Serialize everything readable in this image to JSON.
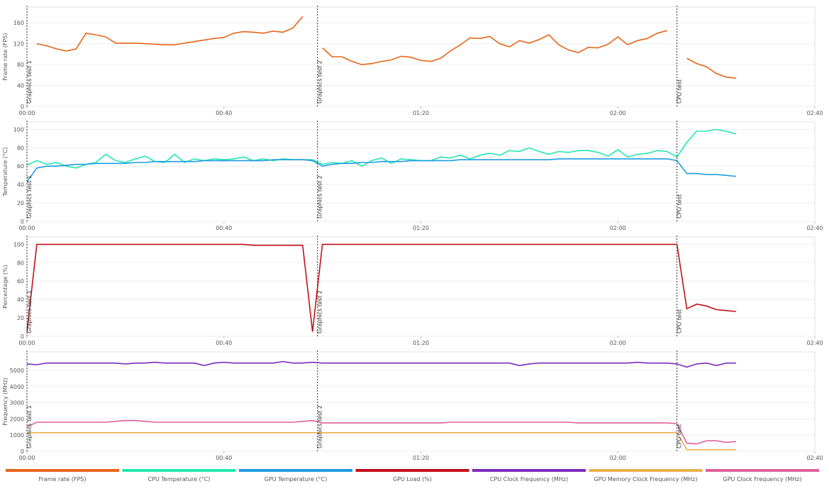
{
  "chart_data": [
    {
      "type": "line",
      "ylabel": "Frame rate (FPS)",
      "xlim": [
        0,
        160
      ],
      "ylim": [
        0,
        190
      ],
      "yticks": [
        0,
        40,
        80,
        120,
        160
      ],
      "xticks": [
        {
          "value": 0,
          "label": "00:00"
        },
        {
          "value": 40,
          "label": "00:40"
        },
        {
          "value": 80,
          "label": "01:20"
        },
        {
          "value": 120,
          "label": "02:00"
        },
        {
          "value": 160,
          "label": "02:40"
        }
      ],
      "grid": true,
      "markers": [
        {
          "x": 0,
          "label": "Graphics test 1"
        },
        {
          "x": 59,
          "label": "Graphics test 2"
        },
        {
          "x": 132,
          "label": "CPU test"
        }
      ],
      "x": [
        0,
        2,
        4,
        6,
        8,
        10,
        12,
        14,
        16,
        18,
        20,
        22,
        24,
        26,
        28,
        30,
        32,
        34,
        36,
        38,
        40,
        42,
        44,
        46,
        48,
        50,
        52,
        54,
        56,
        58,
        60,
        62,
        64,
        66,
        68,
        70,
        72,
        74,
        76,
        78,
        80,
        82,
        84,
        86,
        88,
        90,
        92,
        94,
        96,
        98,
        100,
        102,
        104,
        106,
        108,
        110,
        112,
        114,
        116,
        118,
        120,
        122,
        124,
        126,
        128,
        130,
        132,
        134,
        136,
        138,
        140,
        142,
        144
      ],
      "series": [
        {
          "name": "Frame rate (FPS)",
          "color": "#e8651a",
          "values": [
            null,
            120,
            116,
            110,
            106,
            110,
            140,
            137,
            133,
            121,
            121,
            121,
            120,
            119,
            118,
            118,
            121,
            124,
            127,
            130,
            132,
            140,
            143,
            142,
            140,
            144,
            142,
            150,
            172,
            null,
            112,
            95,
            95,
            86,
            80,
            82,
            86,
            89,
            96,
            94,
            88,
            86,
            92,
            106,
            118,
            131,
            130,
            134,
            120,
            114,
            126,
            121,
            128,
            137,
            118,
            108,
            103,
            113,
            112,
            119,
            133,
            118,
            126,
            130,
            140,
            145,
            null,
            92,
            82,
            76,
            63,
            56,
            54
          ]
        }
      ]
    },
    {
      "type": "line",
      "ylabel": "Temperature (°C)",
      "xlim": [
        0,
        160
      ],
      "ylim": [
        0,
        108
      ],
      "yticks": [
        0,
        20,
        40,
        60,
        80,
        100
      ],
      "xticks": [
        {
          "value": 0,
          "label": "00:00"
        },
        {
          "value": 40,
          "label": "00:40"
        },
        {
          "value": 80,
          "label": "01:20"
        },
        {
          "value": 120,
          "label": "02:00"
        },
        {
          "value": 160,
          "label": "02:40"
        }
      ],
      "grid": true,
      "markers": [
        {
          "x": 0,
          "label": "Graphics test 1"
        },
        {
          "x": 59,
          "label": "Graphics test 2"
        },
        {
          "x": 132,
          "label": "CPU test"
        }
      ],
      "x": [
        0,
        2,
        4,
        6,
        8,
        10,
        12,
        14,
        16,
        18,
        20,
        22,
        24,
        26,
        28,
        30,
        32,
        34,
        36,
        38,
        40,
        42,
        44,
        46,
        48,
        50,
        52,
        54,
        56,
        58,
        60,
        62,
        64,
        66,
        68,
        70,
        72,
        74,
        76,
        78,
        80,
        82,
        84,
        86,
        88,
        90,
        92,
        94,
        96,
        98,
        100,
        102,
        104,
        106,
        108,
        110,
        112,
        114,
        116,
        118,
        120,
        122,
        124,
        126,
        128,
        130,
        132,
        134,
        136,
        138,
        140,
        142,
        144
      ],
      "series": [
        {
          "name": "CPU Temperature (°C)",
          "color": "#22e8b0",
          "values": [
            61,
            66,
            62,
            64,
            60,
            58,
            62,
            64,
            73,
            66,
            64,
            68,
            71,
            65,
            64,
            73,
            64,
            68,
            66,
            68,
            67,
            68,
            70,
            66,
            68,
            66,
            68,
            67,
            67,
            67,
            62,
            64,
            63,
            66,
            60,
            66,
            69,
            63,
            68,
            67,
            66,
            66,
            70,
            69,
            72,
            68,
            72,
            74,
            72,
            77,
            76,
            80,
            76,
            73,
            76,
            75,
            77,
            77,
            75,
            71,
            78,
            70,
            73,
            74,
            77,
            76,
            70,
            86,
            98,
            98,
            100,
            98,
            95
          ]
        },
        {
          "name": "GPU Temperature (°C)",
          "color": "#1e9de0",
          "values": [
            43,
            58,
            60,
            60,
            61,
            62,
            62,
            63,
            63,
            63,
            63,
            64,
            64,
            65,
            65,
            65,
            65,
            65,
            66,
            66,
            66,
            66,
            66,
            66,
            66,
            67,
            67,
            67,
            67,
            66,
            60,
            62,
            63,
            63,
            64,
            64,
            65,
            65,
            65,
            66,
            66,
            66,
            66,
            66,
            67,
            67,
            67,
            67,
            67,
            67,
            67,
            67,
            67,
            67,
            68,
            68,
            68,
            68,
            68,
            68,
            68,
            68,
            68,
            68,
            68,
            68,
            66,
            52,
            52,
            51,
            51,
            50,
            49
          ]
        }
      ]
    },
    {
      "type": "line",
      "ylabel": "Percentage (%)",
      "xlim": [
        0,
        160
      ],
      "ylim": [
        0,
        108
      ],
      "yticks": [
        0,
        20,
        40,
        60,
        80,
        100
      ],
      "xticks": [
        {
          "value": 0,
          "label": "00:00"
        },
        {
          "value": 40,
          "label": "00:40"
        },
        {
          "value": 80,
          "label": "01:20"
        },
        {
          "value": 120,
          "label": "02:00"
        },
        {
          "value": 160,
          "label": "02:40"
        }
      ],
      "grid": true,
      "markers": [
        {
          "x": 0,
          "label": "Graphics test 1"
        },
        {
          "x": 59,
          "label": "Graphics test 2"
        },
        {
          "x": 132,
          "label": "CPU test"
        }
      ],
      "x": [
        0,
        2,
        4,
        6,
        8,
        10,
        12,
        14,
        16,
        18,
        20,
        22,
        24,
        26,
        28,
        30,
        32,
        34,
        36,
        38,
        40,
        42,
        44,
        46,
        48,
        50,
        52,
        54,
        56,
        58,
        60,
        62,
        64,
        66,
        68,
        70,
        72,
        74,
        76,
        78,
        80,
        82,
        84,
        86,
        88,
        90,
        92,
        94,
        96,
        98,
        100,
        102,
        104,
        106,
        108,
        110,
        112,
        114,
        116,
        118,
        120,
        122,
        124,
        126,
        128,
        130,
        132,
        134,
        136,
        138,
        140,
        142,
        144
      ],
      "series": [
        {
          "name": "GPU Load (%)",
          "color": "#c2101a",
          "values": [
            5,
            100,
            100,
            100,
            100,
            100,
            100,
            100,
            100,
            100,
            100,
            100,
            100,
            100,
            100,
            100,
            100,
            100,
            100,
            100,
            100,
            100,
            100,
            99,
            99,
            99,
            99,
            99,
            99,
            5,
            100,
            100,
            100,
            100,
            100,
            100,
            100,
            100,
            100,
            100,
            100,
            100,
            100,
            100,
            100,
            100,
            100,
            100,
            100,
            100,
            100,
            100,
            100,
            100,
            100,
            100,
            100,
            100,
            100,
            100,
            100,
            100,
            100,
            100,
            100,
            100,
            100,
            30,
            35,
            33,
            29,
            28,
            27
          ]
        }
      ]
    },
    {
      "type": "line",
      "ylabel": "Frequency (MHz)",
      "xlim": [
        0,
        160
      ],
      "ylim": [
        0,
        6140
      ],
      "yticks": [
        0,
        1000,
        2000,
        3000,
        4000,
        5000
      ],
      "xticks": [
        {
          "value": 0,
          "label": "00:00"
        },
        {
          "value": 40,
          "label": "00:40"
        },
        {
          "value": 80,
          "label": "01:20"
        },
        {
          "value": 120,
          "label": "02:00"
        },
        {
          "value": 160,
          "label": "02:40"
        }
      ],
      "grid": true,
      "markers": [
        {
          "x": 0,
          "label": "Graphics test 1"
        },
        {
          "x": 59,
          "label": "Graphics test 2"
        },
        {
          "x": 132,
          "label": "CPU test"
        }
      ],
      "x": [
        0,
        2,
        4,
        6,
        8,
        10,
        12,
        14,
        16,
        18,
        20,
        22,
        24,
        26,
        28,
        30,
        32,
        34,
        36,
        38,
        40,
        42,
        44,
        46,
        48,
        50,
        52,
        54,
        56,
        58,
        60,
        62,
        64,
        66,
        68,
        70,
        72,
        74,
        76,
        78,
        80,
        82,
        84,
        86,
        88,
        90,
        92,
        94,
        96,
        98,
        100,
        102,
        104,
        106,
        108,
        110,
        112,
        114,
        116,
        118,
        120,
        122,
        124,
        126,
        128,
        130,
        132,
        134,
        136,
        138,
        140,
        142,
        144
      ],
      "series": [
        {
          "name": "CPU Clock Frequency (MHz)",
          "color": "#7b2bbf",
          "values": [
            5400,
            5350,
            5450,
            5450,
            5450,
            5450,
            5450,
            5450,
            5450,
            5450,
            5400,
            5450,
            5450,
            5500,
            5450,
            5450,
            5450,
            5450,
            5300,
            5450,
            5500,
            5450,
            5450,
            5450,
            5450,
            5450,
            5550,
            5450,
            5450,
            5500,
            5450,
            5450,
            5450,
            5450,
            5450,
            5450,
            5450,
            5450,
            5450,
            5450,
            5450,
            5450,
            5450,
            5450,
            5450,
            5450,
            5450,
            5450,
            5450,
            5450,
            5300,
            5400,
            5450,
            5450,
            5450,
            5450,
            5450,
            5450,
            5450,
            5450,
            5450,
            5450,
            5500,
            5450,
            5450,
            5450,
            5400,
            5200,
            5400,
            5450,
            5300,
            5450,
            5450
          ]
        },
        {
          "name": "GPU Memory Clock Frequency (MHz)",
          "color": "#e8b04a",
          "values": [
            1150,
            1150,
            1150,
            1150,
            1150,
            1150,
            1150,
            1150,
            1150,
            1150,
            1150,
            1150,
            1150,
            1150,
            1150,
            1150,
            1150,
            1150,
            1150,
            1150,
            1150,
            1150,
            1150,
            1150,
            1150,
            1150,
            1150,
            1150,
            1150,
            1150,
            1150,
            1150,
            1150,
            1150,
            1150,
            1150,
            1150,
            1150,
            1150,
            1150,
            1150,
            1150,
            1150,
            1150,
            1150,
            1150,
            1150,
            1150,
            1150,
            1150,
            1150,
            1150,
            1150,
            1150,
            1150,
            1150,
            1150,
            1150,
            1150,
            1150,
            1150,
            1150,
            1150,
            1150,
            1150,
            1150,
            1150,
            100,
            100,
            100,
            100,
            100,
            100
          ]
        },
        {
          "name": "GPU Clock Frequency (MHz)",
          "color": "#e0609a",
          "values": [
            1500,
            1800,
            1800,
            1800,
            1800,
            1800,
            1800,
            1800,
            1800,
            1850,
            1900,
            1900,
            1850,
            1800,
            1800,
            1800,
            1800,
            1800,
            1800,
            1800,
            1800,
            1800,
            1800,
            1800,
            1800,
            1800,
            1800,
            1800,
            1850,
            1900,
            1750,
            1750,
            1750,
            1750,
            1750,
            1750,
            1750,
            1750,
            1750,
            1750,
            1750,
            1750,
            1750,
            1800,
            1800,
            1800,
            1800,
            1800,
            1800,
            1800,
            1800,
            1800,
            1800,
            1800,
            1800,
            1800,
            1750,
            1750,
            1750,
            1750,
            1750,
            1750,
            1750,
            1750,
            1750,
            1750,
            1700,
            500,
            450,
            650,
            650,
            550,
            600
          ]
        }
      ]
    }
  ]
}
